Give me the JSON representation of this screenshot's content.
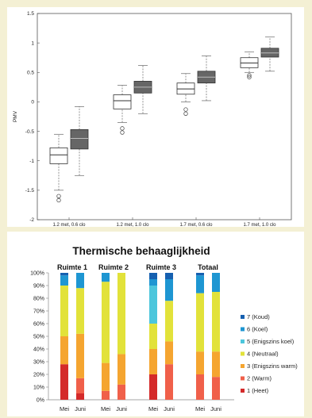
{
  "chart_data": [
    {
      "type": "box",
      "ylabel": "PMV",
      "ylim": [
        -2,
        1.5
      ],
      "yticks": [
        -2,
        -1.5,
        -1,
        -0.5,
        0,
        0.5,
        1,
        1.5
      ],
      "categories": [
        "1.2 met, 0.6 clo",
        "1.2 met, 1.0 clo",
        "1.7 met, 0.6 clo",
        "1.7 met, 1.0 clo"
      ],
      "series_colors": [
        "#ffffff",
        "#666666"
      ],
      "boxes": [
        {
          "category": 0,
          "series": 0,
          "whisker_low": -1.5,
          "q1": -1.05,
          "median": -0.9,
          "q3": -0.78,
          "whisker_high": -0.55,
          "outliers": [
            -1.6,
            -1.67
          ]
        },
        {
          "category": 0,
          "series": 1,
          "whisker_low": -1.25,
          "q1": -0.8,
          "median": -0.62,
          "q3": -0.47,
          "whisker_high": -0.08,
          "outliers": []
        },
        {
          "category": 1,
          "series": 0,
          "whisker_low": -0.35,
          "q1": -0.12,
          "median": 0.02,
          "q3": 0.12,
          "whisker_high": 0.28,
          "outliers": [
            -0.45,
            -0.52
          ]
        },
        {
          "category": 1,
          "series": 1,
          "whisker_low": -0.2,
          "q1": 0.15,
          "median": 0.25,
          "q3": 0.35,
          "whisker_high": 0.62,
          "outliers": []
        },
        {
          "category": 2,
          "series": 0,
          "whisker_low": 0.0,
          "q1": 0.13,
          "median": 0.22,
          "q3": 0.32,
          "whisker_high": 0.48,
          "outliers": [
            -0.13,
            -0.2
          ]
        },
        {
          "category": 2,
          "series": 1,
          "whisker_low": 0.02,
          "q1": 0.32,
          "median": 0.42,
          "q3": 0.52,
          "whisker_high": 0.78,
          "outliers": []
        },
        {
          "category": 3,
          "series": 0,
          "whisker_low": 0.5,
          "q1": 0.58,
          "median": 0.66,
          "q3": 0.75,
          "whisker_high": 0.85,
          "outliers": [
            0.45,
            0.42
          ]
        },
        {
          "category": 3,
          "series": 1,
          "whisker_low": 0.52,
          "q1": 0.76,
          "median": 0.83,
          "q3": 0.91,
          "whisker_high": 1.1,
          "outliers": []
        }
      ]
    },
    {
      "type": "stacked-bar",
      "title": "Thermische behaaglijkheid",
      "groups": [
        "Ruimte 1",
        "Ruimte 2",
        "Ruimte 3",
        "Totaal"
      ],
      "months": [
        "Mei",
        "Juni"
      ],
      "yticks": [
        "0%",
        "10%",
        "20%",
        "30%",
        "40%",
        "50%",
        "60%",
        "70%",
        "80%",
        "90%",
        "100%"
      ],
      "legend_position": "right",
      "series": [
        {
          "name": "1 (Heet)",
          "color": "#d42a2a",
          "values": [
            28,
            5,
            0,
            0,
            20,
            0,
            0,
            0
          ]
        },
        {
          "name": "2 (Warm)",
          "color": "#f0604a",
          "values": [
            0,
            12,
            7,
            12,
            0,
            28,
            20,
            18
          ]
        },
        {
          "name": "3 (Enigszins warm)",
          "color": "#f5a530",
          "values": [
            22,
            35,
            22,
            24,
            20,
            18,
            18,
            20
          ]
        },
        {
          "name": "4 (Neutraal)",
          "color": "#e2e23a",
          "values": [
            40,
            36,
            64,
            64,
            20,
            32,
            46,
            47
          ]
        },
        {
          "name": "5 (Enigszins koel)",
          "color": "#4cc6dc",
          "values": [
            0,
            0,
            0,
            0,
            30,
            0,
            0,
            0
          ]
        },
        {
          "name": "6 (Koel)",
          "color": "#1e96d2",
          "values": [
            8,
            12,
            7,
            0,
            5,
            17,
            14,
            15
          ]
        },
        {
          "name": "7 (Koud)",
          "color": "#1660b0",
          "values": [
            2,
            0,
            0,
            0,
            5,
            5,
            2,
            0
          ]
        }
      ]
    }
  ]
}
